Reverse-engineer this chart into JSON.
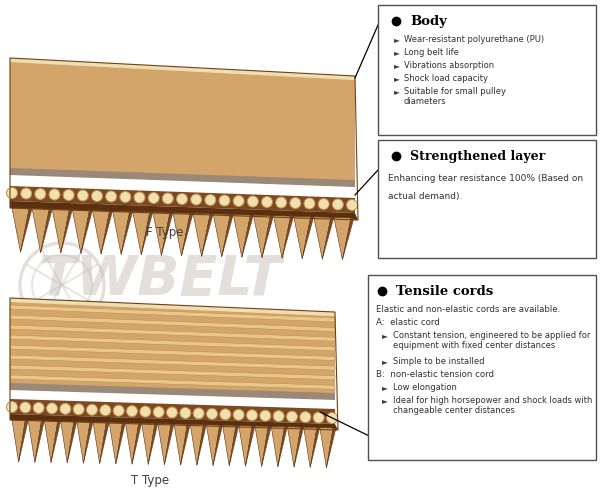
{
  "bg_color": "#ffffff",
  "belt_tan": "#D4A56A",
  "belt_tan2": "#C49050",
  "belt_dark": "#7B4A20",
  "belt_darker": "#5A3010",
  "belt_light": "#E8C88A",
  "belt_lightest": "#F0DEB0",
  "belt_cord": "#F0E0B0",
  "belt_gray": "#9A8878",
  "belt_gray2": "#B8A898",
  "watermark_color": "#C8C0B8",
  "box_bg": "#FFFFFF",
  "box_edge": "#555555",
  "f_type_label": "F Type",
  "t_type_label": "T Type",
  "body_title": "Body",
  "body_bullets": [
    "Wear-resistant polyurethane (PU)",
    "Long belt life",
    "Vibrations absorption",
    "Shock load capacity",
    "Suitable for small pulley\ndiameters"
  ],
  "layer_title": "Strengthened layer",
  "layer_text": "Enhancing tear resistance 100% (Based on\nactual demand).",
  "cords_title": "Tensile cords",
  "cords_intro": "Elastic and non-elastic cords are available.",
  "cords_a_label": "A:  elastic cord",
  "cords_a_bullets": [
    "Constant tension, engineered to be applied for\nequipment with fixed center distances",
    "Simple to be installed"
  ],
  "cords_b_label": "B:  non-elastic tension cord",
  "cords_b_bullets": [
    "Low elongation",
    "Ideal for high horsepower and shock loads with\nchangeable center distances"
  ],
  "line_pts_body": [
    [
      355,
      80
    ],
    [
      378,
      35
    ]
  ],
  "line_pts_layer": [
    [
      355,
      190
    ],
    [
      378,
      165
    ]
  ],
  "line_pts_cords": [
    [
      355,
      345
    ],
    [
      370,
      310
    ]
  ]
}
